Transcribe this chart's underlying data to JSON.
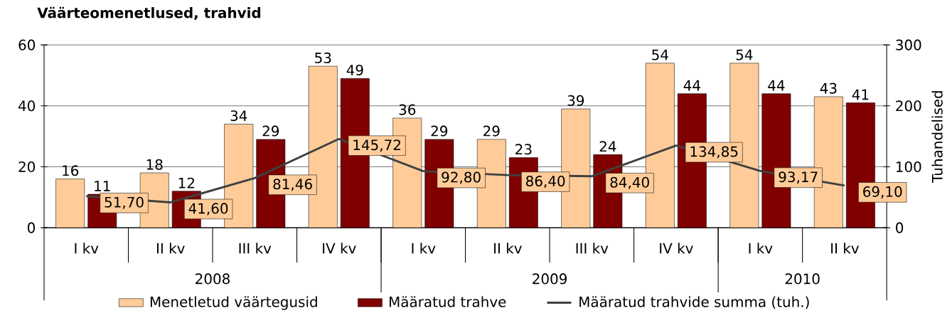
{
  "chart_data": {
    "type": "bar",
    "title": "Väärteomenetlused, trahvid",
    "categories": [
      "I kv",
      "II kv",
      "III kv",
      "IV kv",
      "I kv",
      "II kv",
      "III kv",
      "IV kv",
      "I kv",
      "II kv"
    ],
    "series": [
      {
        "name": "Menetletud väärtegusid",
        "color": "#ffcc99",
        "values": [
          16,
          18,
          34,
          53,
          36,
          29,
          39,
          54,
          54,
          43
        ],
        "value_labels": [
          "16",
          "18",
          "34",
          "53",
          "36",
          "29",
          "39",
          "54",
          "54",
          "43"
        ]
      },
      {
        "name": "Määratud trahve",
        "color": "#800000",
        "values": [
          11,
          12,
          29,
          49,
          29,
          23,
          24,
          44,
          44,
          41
        ],
        "value_labels": [
          "11",
          "12",
          "29",
          "49",
          "29",
          "23",
          "24",
          "44",
          "44",
          "41"
        ]
      },
      {
        "name": "Määratud trahvide summa (tuh.)",
        "type": "line",
        "axis": "y2",
        "color": "#404040",
        "values": [
          51.7,
          41.6,
          81.46,
          145.72,
          92.8,
          86.4,
          84.4,
          134.85,
          93.17,
          69.1
        ],
        "value_labels": [
          "51,70",
          "41,60",
          "81,46",
          "145,72",
          "92,80",
          "86,40",
          "84,40",
          "134,85",
          "93,17",
          "69,10"
        ]
      }
    ],
    "ylim": [
      0,
      60
    ],
    "yticks": [
      0,
      20,
      40,
      60
    ],
    "y2lim": [
      0,
      300
    ],
    "y2ticks": [
      0,
      100,
      200,
      300
    ],
    "y2label": "Tuhandelised",
    "grid": "y",
    "legend": "bottom",
    "annotations": [
      "2008",
      "2009",
      "2010"
    ]
  }
}
